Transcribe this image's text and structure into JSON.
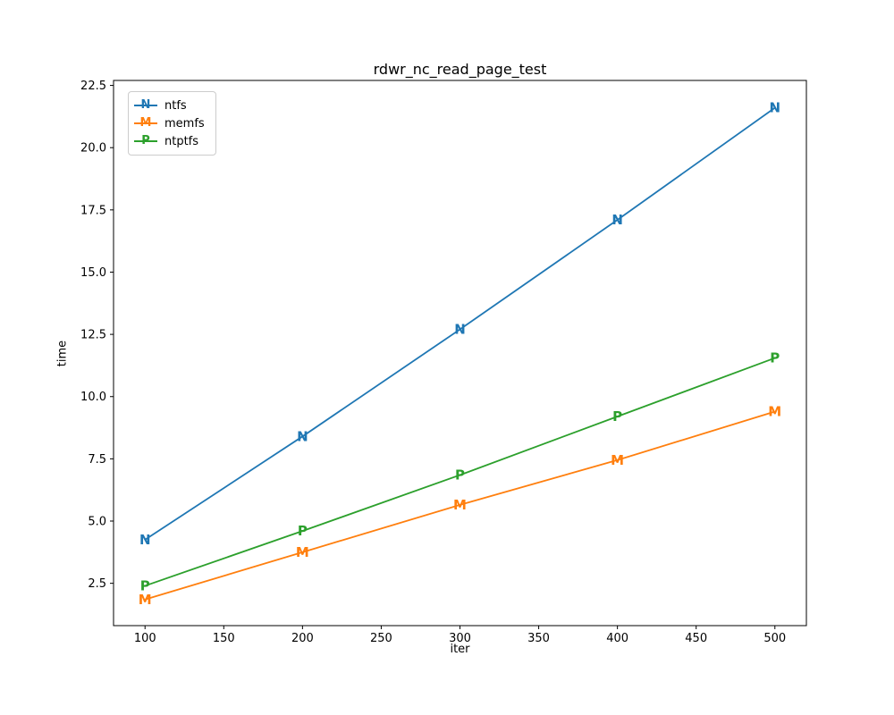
{
  "figure": {
    "background": "#ffffff",
    "axis_color": "#000000",
    "text_color": "#000000"
  },
  "chart_data": {
    "type": "line",
    "title": "rdwr_nc_read_page_test",
    "xlabel": "iter",
    "ylabel": "time",
    "x": [
      100,
      200,
      300,
      400,
      500
    ],
    "series": [
      {
        "name": "ntfs",
        "marker": "N",
        "color": "#1f77b4",
        "values": [
          4.25,
          8.4,
          12.7,
          17.1,
          21.6
        ]
      },
      {
        "name": "memfs",
        "marker": "M",
        "color": "#ff7f0e",
        "values": [
          1.85,
          3.75,
          5.65,
          7.45,
          9.4
        ]
      },
      {
        "name": "ntptfs",
        "marker": "P",
        "color": "#2ca02c",
        "values": [
          2.4,
          4.6,
          6.85,
          9.2,
          11.55
        ]
      }
    ],
    "xticks": [
      "100",
      "150",
      "200",
      "250",
      "300",
      "350",
      "400",
      "450",
      "500"
    ],
    "yticks": [
      "2.5",
      "5.0",
      "7.5",
      "10.0",
      "12.5",
      "15.0",
      "17.5",
      "20.0",
      "22.5"
    ],
    "xlim": [
      80,
      520
    ],
    "ylim": [
      0.8,
      22.7
    ],
    "grid": false,
    "legend_position": "upper-left"
  }
}
